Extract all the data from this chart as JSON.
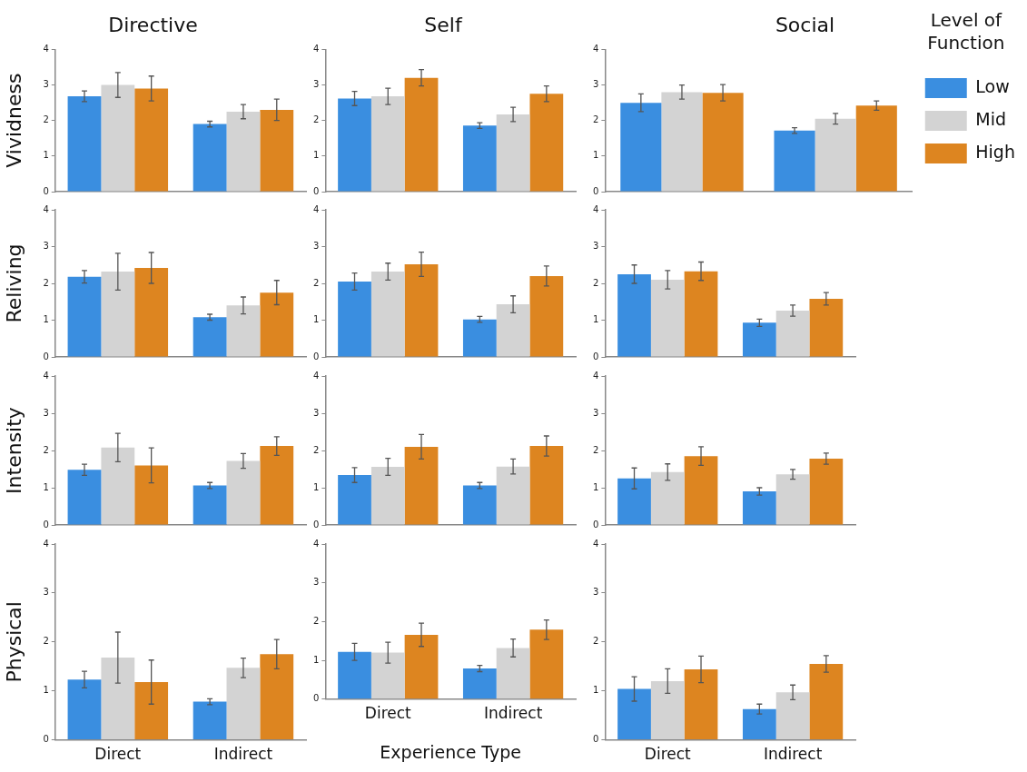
{
  "chart_data": [
    {
      "type": "bar",
      "title": "Directive",
      "ylabel": "Vividness",
      "categories": [
        null,
        null
      ],
      "ylim": [
        0,
        4
      ],
      "yticks": [
        0,
        1,
        2,
        3,
        4
      ],
      "tick_labels": "y",
      "series": [
        {
          "color": "#3a8ee0",
          "values": [
            2.68,
            1.9
          ],
          "errors": [
            0.15,
            0.08
          ]
        },
        {
          "color": "#d3d3d3",
          "values": [
            3.0,
            2.25
          ],
          "errors": [
            0.35,
            0.2
          ]
        },
        {
          "color": "#dd8520",
          "values": [
            2.9,
            2.3
          ],
          "errors": [
            0.35,
            0.3
          ]
        }
      ]
    },
    {
      "type": "bar",
      "title": "Self",
      "categories": [
        null,
        null
      ],
      "ylim": [
        0,
        4
      ],
      "yticks": [
        0,
        1,
        2,
        3,
        4
      ],
      "tick_labels": "y",
      "series": [
        {
          "color": "#3a8ee0",
          "values": [
            2.62,
            1.86
          ],
          "errors": [
            0.2,
            0.08
          ]
        },
        {
          "color": "#d3d3d3",
          "values": [
            2.68,
            2.17
          ],
          "errors": [
            0.23,
            0.2
          ]
        },
        {
          "color": "#dd8520",
          "values": [
            3.2,
            2.75
          ],
          "errors": [
            0.23,
            0.22
          ]
        }
      ]
    },
    {
      "type": "bar",
      "title": "Social",
      "legend_title": "Level of Function",
      "legend": "right",
      "categories": [
        null,
        null
      ],
      "ylim": [
        0,
        4
      ],
      "yticks": [
        0,
        1,
        2,
        3,
        4
      ],
      "tick_labels": "y",
      "series": [
        {
          "name": "Low",
          "color": "#3a8ee0",
          "values": [
            2.5,
            1.72
          ],
          "errors": [
            0.25,
            0.08
          ]
        },
        {
          "name": "Mid",
          "color": "#d3d3d3",
          "values": [
            2.8,
            2.05
          ],
          "errors": [
            0.2,
            0.15
          ]
        },
        {
          "name": "High",
          "color": "#dd8520",
          "values": [
            2.78,
            2.42
          ],
          "errors": [
            0.23,
            0.13
          ]
        }
      ]
    },
    {
      "type": "bar",
      "ylabel": "Reliving",
      "categories": [
        null,
        null
      ],
      "ylim": [
        0,
        4
      ],
      "yticks": [
        0,
        1,
        2,
        3,
        4
      ],
      "tick_labels": "y",
      "series": [
        {
          "color": "#3a8ee0",
          "values": [
            2.18,
            1.08
          ],
          "errors": [
            0.17,
            0.08
          ]
        },
        {
          "color": "#d3d3d3",
          "values": [
            2.32,
            1.4
          ],
          "errors": [
            0.5,
            0.23
          ]
        },
        {
          "color": "#dd8520",
          "values": [
            2.42,
            1.75
          ],
          "errors": [
            0.42,
            0.33
          ]
        }
      ]
    },
    {
      "type": "bar",
      "categories": [
        null,
        null
      ],
      "ylim": [
        0,
        4
      ],
      "yticks": [
        0,
        1,
        2,
        3,
        4
      ],
      "tick_labels": "y",
      "series": [
        {
          "color": "#3a8ee0",
          "values": [
            2.05,
            1.02
          ],
          "errors": [
            0.23,
            0.08
          ]
        },
        {
          "color": "#d3d3d3",
          "values": [
            2.32,
            1.43
          ],
          "errors": [
            0.23,
            0.23
          ]
        },
        {
          "color": "#dd8520",
          "values": [
            2.52,
            2.2
          ],
          "errors": [
            0.33,
            0.27
          ]
        }
      ]
    },
    {
      "type": "bar",
      "categories": [
        null,
        null
      ],
      "ylim": [
        0,
        4
      ],
      "yticks": [
        0,
        1,
        2,
        3,
        4
      ],
      "tick_labels": "y",
      "series": [
        {
          "color": "#3a8ee0",
          "values": [
            2.25,
            0.93
          ],
          "errors": [
            0.25,
            0.1
          ]
        },
        {
          "color": "#d3d3d3",
          "values": [
            2.1,
            1.26
          ],
          "errors": [
            0.25,
            0.15
          ]
        },
        {
          "color": "#dd8520",
          "values": [
            2.33,
            1.58
          ],
          "errors": [
            0.25,
            0.17
          ]
        }
      ]
    },
    {
      "type": "bar",
      "ylabel": "Intensity",
      "categories": [
        null,
        null
      ],
      "ylim": [
        0,
        4
      ],
      "yticks": [
        0,
        1,
        2,
        3,
        4
      ],
      "tick_labels": "y",
      "series": [
        {
          "color": "#3a8ee0",
          "values": [
            1.48,
            1.06
          ],
          "errors": [
            0.15,
            0.08
          ]
        },
        {
          "color": "#d3d3d3",
          "values": [
            2.08,
            1.72
          ],
          "errors": [
            0.38,
            0.2
          ]
        },
        {
          "color": "#dd8520",
          "values": [
            1.6,
            2.12
          ],
          "errors": [
            0.47,
            0.25
          ]
        }
      ]
    },
    {
      "type": "bar",
      "categories": [
        null,
        null
      ],
      "ylim": [
        0,
        4
      ],
      "yticks": [
        0,
        1,
        2,
        3,
        4
      ],
      "tick_labels": "y",
      "series": [
        {
          "color": "#3a8ee0",
          "values": [
            1.34,
            1.06
          ],
          "errors": [
            0.2,
            0.08
          ]
        },
        {
          "color": "#d3d3d3",
          "values": [
            1.56,
            1.57
          ],
          "errors": [
            0.23,
            0.2
          ]
        },
        {
          "color": "#dd8520",
          "values": [
            2.1,
            2.12
          ],
          "errors": [
            0.33,
            0.27
          ]
        }
      ]
    },
    {
      "type": "bar",
      "categories": [
        null,
        null
      ],
      "ylim": [
        0,
        4
      ],
      "yticks": [
        0,
        1,
        2,
        3,
        4
      ],
      "tick_labels": "y",
      "series": [
        {
          "color": "#3a8ee0",
          "values": [
            1.25,
            0.9
          ],
          "errors": [
            0.28,
            0.1
          ]
        },
        {
          "color": "#d3d3d3",
          "values": [
            1.42,
            1.36
          ],
          "errors": [
            0.22,
            0.13
          ]
        },
        {
          "color": "#dd8520",
          "values": [
            1.85,
            1.78
          ],
          "errors": [
            0.25,
            0.15
          ]
        }
      ]
    },
    {
      "type": "bar",
      "ylabel": "Physical",
      "categories": [
        "Direct",
        "Indirect"
      ],
      "ylim": [
        0,
        4
      ],
      "yticks": [
        0,
        1,
        2,
        3,
        4
      ],
      "series": [
        {
          "color": "#3a8ee0",
          "values": [
            1.23,
            0.78
          ],
          "errors": [
            0.17,
            0.06
          ]
        },
        {
          "color": "#d3d3d3",
          "values": [
            1.68,
            1.47
          ],
          "errors": [
            0.52,
            0.2
          ]
        },
        {
          "color": "#dd8520",
          "values": [
            1.18,
            1.75
          ],
          "errors": [
            0.45,
            0.3
          ]
        }
      ]
    },
    {
      "type": "bar",
      "xlabel": "Experience Type",
      "categories": [
        "Direct",
        "Indirect"
      ],
      "ylim": [
        0,
        4
      ],
      "yticks": [
        0,
        1,
        2,
        3,
        4
      ],
      "series": [
        {
          "color": "#3a8ee0",
          "values": [
            1.22,
            0.79
          ],
          "errors": [
            0.22,
            0.08
          ]
        },
        {
          "color": "#d3d3d3",
          "values": [
            1.2,
            1.32
          ],
          "errors": [
            0.27,
            0.23
          ]
        },
        {
          "color": "#dd8520",
          "values": [
            1.66,
            1.79
          ],
          "errors": [
            0.3,
            0.25
          ]
        }
      ]
    },
    {
      "type": "bar",
      "categories": [
        "Direct",
        "Indirect"
      ],
      "ylim": [
        0,
        4
      ],
      "yticks": [
        0,
        1,
        2,
        3,
        4
      ],
      "series": [
        {
          "color": "#3a8ee0",
          "values": [
            1.04,
            0.63
          ],
          "errors": [
            0.25,
            0.1
          ]
        },
        {
          "color": "#d3d3d3",
          "values": [
            1.2,
            0.97
          ],
          "errors": [
            0.25,
            0.15
          ]
        },
        {
          "color": "#dd8520",
          "values": [
            1.44,
            1.55
          ],
          "errors": [
            0.27,
            0.17
          ]
        }
      ]
    }
  ]
}
